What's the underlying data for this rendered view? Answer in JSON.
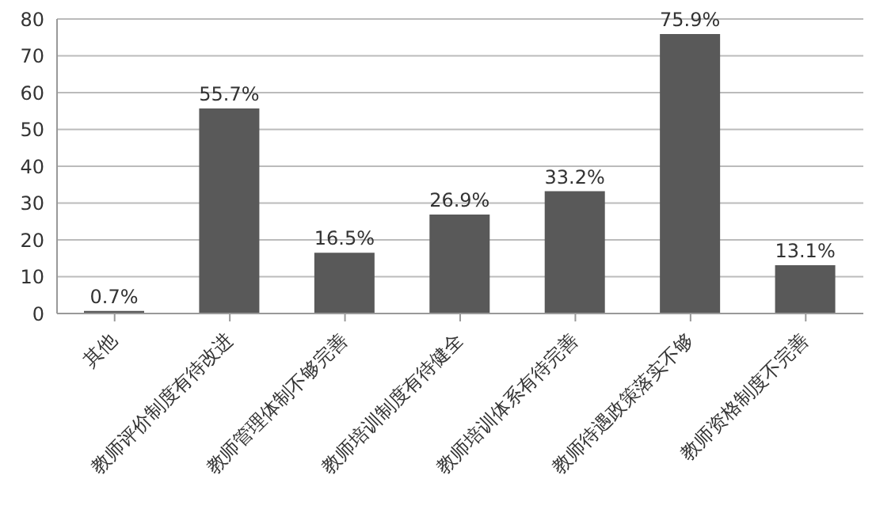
{
  "chart_data": {
    "type": "bar",
    "categories": [
      "其他",
      "教师评价制度有待改进",
      "教师管理体制不够完善",
      "教师培训制度有待健全",
      "教师培训体系有待完善",
      "教师待遇政策落实不够",
      "教师资格制度不完善"
    ],
    "values": [
      0.7,
      55.7,
      16.5,
      26.9,
      33.2,
      75.9,
      13.1
    ],
    "value_labels": [
      "0.7%",
      "55.7%",
      "16.5%",
      "26.9%",
      "33.2%",
      "75.9%",
      "13.1%"
    ],
    "color": "#595959",
    "ylim": [
      0,
      80
    ],
    "yticks": [
      0,
      10,
      20,
      30,
      40,
      50,
      60,
      70,
      80
    ],
    "grid": "y",
    "legend": false
  }
}
